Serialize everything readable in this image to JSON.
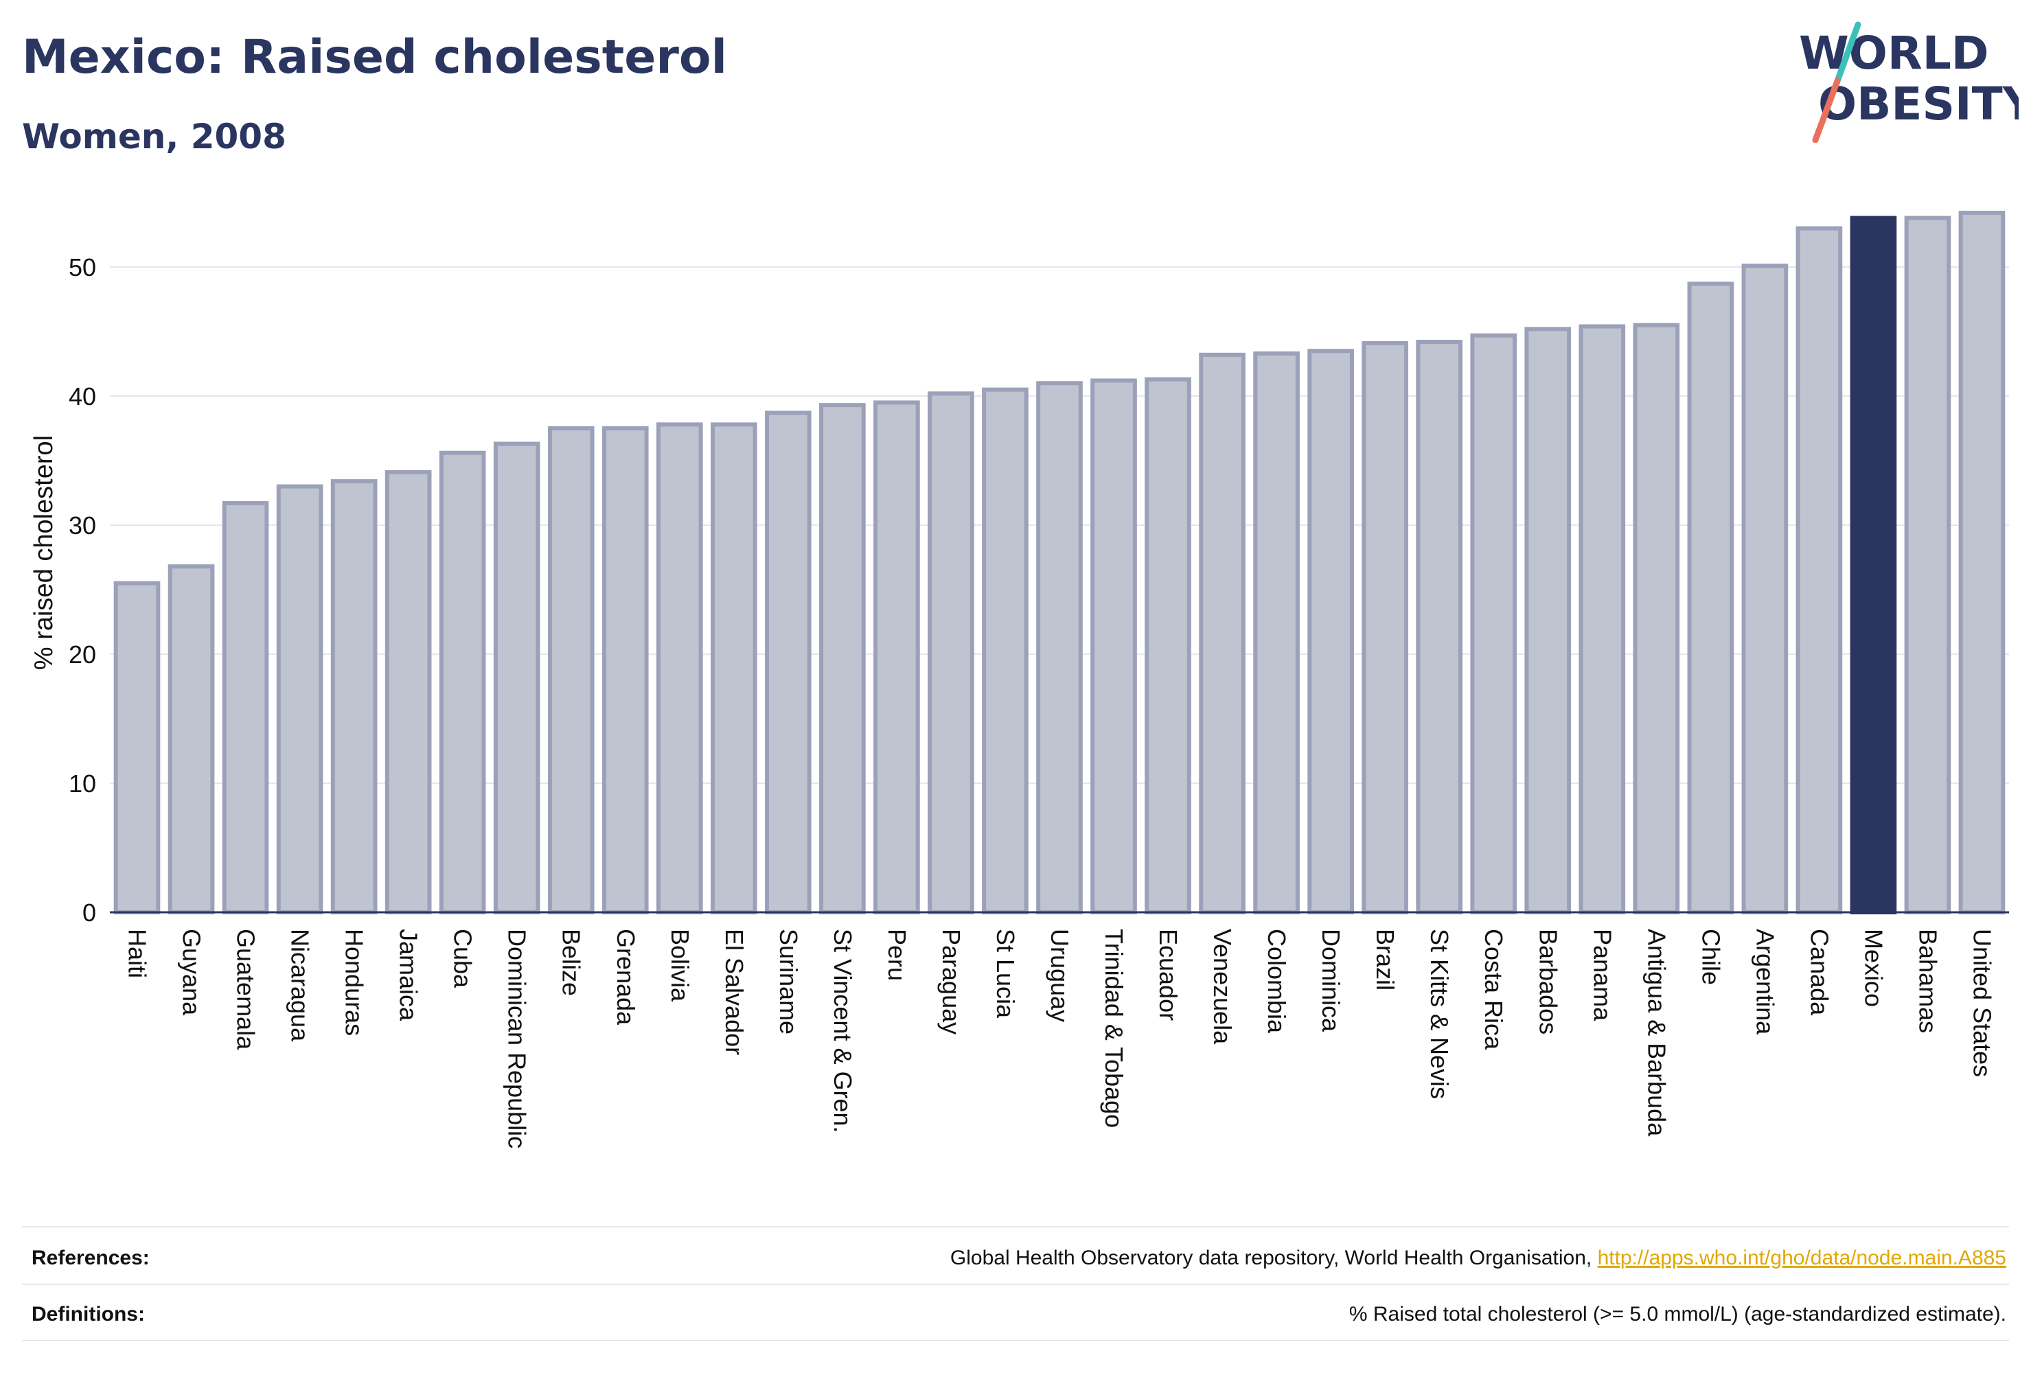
{
  "header": {
    "title": "Mexico: Raised cholesterol",
    "subtitle": "Women, 2008"
  },
  "logo": {
    "line1": "WORLD",
    "line2": "OBESITY",
    "colors": {
      "text": "#2a3560",
      "slash_teal": "#3cbfb9",
      "slash_coral": "#e8705c"
    }
  },
  "chart_data": {
    "type": "bar",
    "title": "Mexico: Raised cholesterol",
    "subtitle": "Women, 2008",
    "xlabel": "",
    "ylabel": "% raised cholesterol",
    "ylim": [
      0,
      55
    ],
    "yticks": [
      0,
      10,
      20,
      30,
      40,
      50
    ],
    "grid": true,
    "highlight": "Mexico",
    "categories": [
      "Haiti",
      "Guyana",
      "Guatemala",
      "Nicaragua",
      "Honduras",
      "Jamaica",
      "Cuba",
      "Dominican Republic",
      "Belize",
      "Grenada",
      "Bolivia",
      "El Salvador",
      "Suriname",
      "St Vincent & Gren.",
      "Peru",
      "Paraguay",
      "St Lucia",
      "Uruguay",
      "Trinidad & Tobago",
      "Ecuador",
      "Venezuela",
      "Colombia",
      "Dominica",
      "Brazil",
      "St Kitts & Nevis",
      "Costa Rica",
      "Barbados",
      "Panama",
      "Antigua & Barbuda",
      "Chile",
      "Argentina",
      "Canada",
      "Mexico",
      "Bahamas",
      "United States"
    ],
    "values": [
      25.5,
      26.8,
      31.7,
      33.0,
      33.4,
      34.1,
      35.6,
      36.3,
      37.5,
      37.5,
      37.8,
      37.8,
      38.7,
      39.3,
      39.5,
      40.2,
      40.5,
      41.0,
      41.2,
      41.3,
      43.2,
      43.3,
      43.5,
      44.1,
      44.2,
      44.7,
      45.2,
      45.4,
      45.5,
      48.7,
      50.1,
      53.0,
      53.8,
      53.8,
      54.2
    ],
    "colors": {
      "bar": "#c0c3d0",
      "bar_edge": "#9ba1b8",
      "highlight": "#2a3560",
      "grid": "#e4e6ec",
      "axis": "#2a3560"
    }
  },
  "footer": {
    "references_label": "References:",
    "references_text": "Global Health Observatory data repository, World Health Organisation, ",
    "references_link": "http://apps.who.int/gho/data/node.main.A885",
    "definitions_label": "Definitions:",
    "definitions_text": "% Raised total cholesterol (>= 5.0 mmol/L) (age-standardized estimate)."
  }
}
